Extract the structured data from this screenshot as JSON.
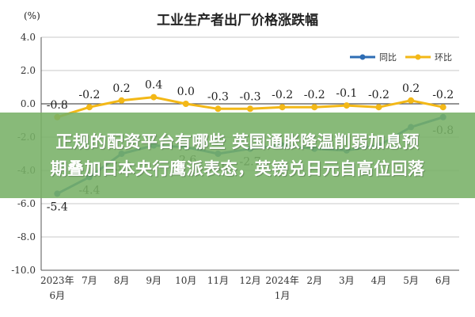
{
  "chart_data": {
    "type": "line",
    "title": "工业生产者出厂价格涨跌幅",
    "unit_label": "(%)",
    "categories": [
      "2023年6月",
      "7月",
      "8月",
      "9月",
      "10月",
      "11月",
      "12月",
      "2024年1月",
      "2月",
      "3月",
      "4月",
      "5月",
      "6月"
    ],
    "ylim": [
      -10.0,
      4.0
    ],
    "yticks": [
      "4.0",
      "2.0",
      "0.0",
      "-2.0",
      "-4.0",
      "-6.0",
      "-8.0",
      "-10.0"
    ],
    "ytick_values": [
      4,
      2,
      0,
      -2,
      -4,
      -6,
      -8,
      -10
    ],
    "series": [
      {
        "name": "同比",
        "color": "#2e6db4",
        "values": [
          -5.4,
          -4.4,
          -3.0,
          -2.5,
          -2.6,
          -3.0,
          -2.7,
          -2.5,
          -2.7,
          -2.8,
          -2.5,
          -1.4,
          -0.8
        ],
        "labels": [
          "-5.4",
          "-4.4",
          "-3.0",
          "",
          "-2.6",
          "-3.0",
          "-2.7",
          "",
          "",
          "",
          "",
          "",
          "-0.8"
        ]
      },
      {
        "name": "环比",
        "color": "#f3b817",
        "values": [
          -0.8,
          -0.2,
          0.2,
          0.4,
          0.0,
          -0.3,
          -0.3,
          -0.2,
          -0.2,
          -0.1,
          -0.2,
          0.2,
          -0.2
        ],
        "labels": [
          "-0.8",
          "-0.2",
          "0.2",
          "0.4",
          "0.0",
          "-0.3",
          "-0.3",
          "-0.2",
          "-0.2",
          "-0.1",
          "-0.2",
          "0.2",
          "-0.2"
        ]
      }
    ],
    "grid": true,
    "legend": "top-right"
  },
  "overlay": {
    "line1": "正规的配资平台有哪些 英国通胀降温削弱加息预",
    "line2": "期叠加日本央行鹰派表态，英镑兑日元自高位回落"
  }
}
